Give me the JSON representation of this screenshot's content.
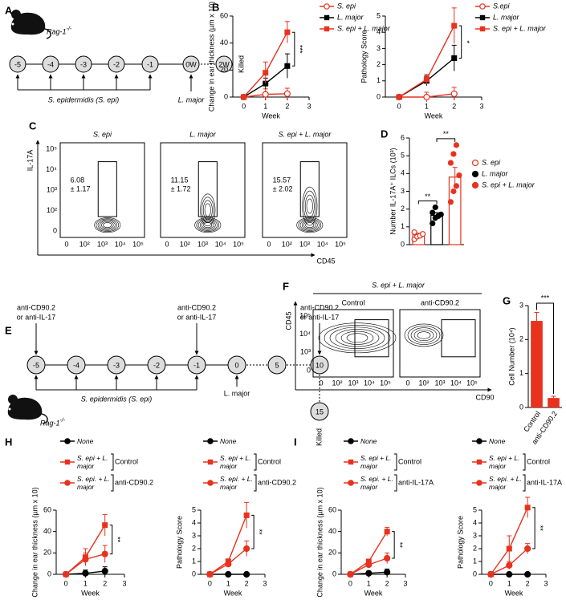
{
  "diagram_a": {
    "panel_label": "A",
    "strain": "Rag-1",
    "strain_sup": "-/-",
    "days": [
      "-5",
      "-4",
      "-3",
      "-2",
      "-1",
      "0W",
      "2W"
    ],
    "end_label": "Killed",
    "treatment": "S. epidermidis (S. epi)",
    "infection": "L. major"
  },
  "flow_c": {
    "panel_label": "C",
    "y_axis_label": "IL-17A",
    "x_axis_label": "CD45",
    "yticks": [
      "10⁵",
      "10⁴",
      "10³",
      "10²",
      "0"
    ],
    "xticks": [
      "0",
      "10²",
      "10³",
      "10⁴",
      "10⁵"
    ],
    "plots": [
      {
        "title": "S. epi",
        "gate_label": [
          "6.08",
          "± 1.17"
        ]
      },
      {
        "title": "L. major",
        "gate_label": [
          "11.15",
          "± 1.72"
        ]
      },
      {
        "title": "S. epi + L. major",
        "gate_label": [
          "15.57",
          "± 2.02"
        ]
      }
    ]
  },
  "diagram_e": {
    "panel_label": "E",
    "strain": "Rag-1",
    "strain_sup": "-/-",
    "days": [
      "-5",
      "-4",
      "-3",
      "-2",
      "-1",
      "0",
      "5",
      "10",
      "15"
    ],
    "doses": [
      [
        "anti-CD90.2",
        "or anti-IL-17"
      ],
      [
        "anti-CD90.2",
        "or anti-IL-17"
      ],
      [
        "anti-CD90.2",
        "or anti-IL-17"
      ]
    ],
    "treatment": "S. epidermidis (S. epi)",
    "infection": "L. major",
    "end_label": "Killed"
  },
  "flow_f": {
    "panel_label": "F",
    "header": "S. epi + L. major",
    "y_axis_label": "CD45",
    "x_axis_label": "CD90",
    "yticks": [
      "10⁵",
      "10⁴",
      "10³",
      "0"
    ],
    "xticks": [
      "0",
      "10²",
      "10³",
      "10⁴",
      "10⁵"
    ],
    "plots": [
      {
        "title": "Control"
      },
      {
        "title": "anti-CD90.2"
      }
    ]
  },
  "chart_data": [
    {
      "type": "line",
      "panel_label": "B",
      "ylabel": "Change in ear  thickness (µm x 10)",
      "xlabel": "Week",
      "x": [
        0,
        1,
        2
      ],
      "xlim": [
        -0.5,
        3
      ],
      "xticks": [
        0,
        1,
        2,
        3
      ],
      "ylim": [
        0,
        60
      ],
      "yticks": [
        0,
        20,
        40,
        60
      ],
      "significance": "***",
      "series": [
        {
          "name": "S. epi",
          "color": "#e8321e",
          "marker": "open-circle",
          "values": [
            0,
            2,
            2.5
          ],
          "errors": [
            0,
            4,
            4
          ]
        },
        {
          "name": "L. major",
          "color": "#000000",
          "marker": "square",
          "values": [
            0,
            10,
            23
          ],
          "errors": [
            0,
            4,
            9
          ]
        },
        {
          "name": "S. epi + L. major",
          "color": "#e8321e",
          "marker": "square",
          "values": [
            0,
            18,
            48
          ],
          "errors": [
            0,
            8,
            8
          ]
        }
      ]
    },
    {
      "type": "line",
      "ylabel": "Pathology Score",
      "xlabel": "Week",
      "x": [
        0,
        1,
        2
      ],
      "xlim": [
        -0.5,
        3
      ],
      "xticks": [
        0,
        1,
        2,
        3
      ],
      "ylim": [
        0,
        5
      ],
      "yticks": [
        0,
        1,
        2,
        3,
        4,
        5
      ],
      "significance": "*",
      "series": [
        {
          "name": "S.epi",
          "color": "#e8321e",
          "marker": "open-circle",
          "values": [
            0,
            0,
            0.2
          ],
          "errors": [
            0,
            0.3,
            0.4
          ]
        },
        {
          "name": "L. major",
          "color": "#000000",
          "marker": "square",
          "values": [
            0,
            1,
            2.4
          ],
          "errors": [
            0,
            0.3,
            0.8
          ]
        },
        {
          "name": "S. epi + L. major",
          "color": "#e8321e",
          "marker": "square",
          "values": [
            0,
            1.1,
            4.4
          ],
          "errors": [
            0,
            0.3,
            1.1
          ]
        }
      ]
    },
    {
      "type": "bar",
      "panel_label": "D",
      "ylabel": "Number IL-17A⁺ ILCs (10³)",
      "categories": [
        null,
        null,
        null
      ],
      "values": [
        0.55,
        1.65,
        3.8
      ],
      "errors": [
        0.1,
        0.15,
        0.55
      ],
      "points": [
        [
          0.3,
          0.45,
          0.5,
          0.6,
          0.7
        ],
        [
          1.2,
          1.5,
          1.6,
          1.7,
          1.8,
          2.1
        ],
        [
          2.4,
          3.0,
          3.3,
          3.9,
          4.6,
          5.1,
          5.6
        ]
      ],
      "colors": [
        "#e8321e",
        "#000000",
        "#e8321e"
      ],
      "markers": [
        "open-circle",
        "circle",
        "circle"
      ],
      "legend": [
        "S. epi",
        "L. major",
        "S. epi + L. major"
      ],
      "ylim": [
        0,
        6
      ],
      "yticks": [
        0,
        1,
        2,
        3,
        4,
        5,
        6
      ],
      "annotations": [
        "**",
        "**"
      ]
    },
    {
      "type": "bar",
      "panel_label": "G",
      "ylabel": "Cell Number (10⁴)",
      "categories": [
        "Control",
        "anti-CD90.2"
      ],
      "values": [
        2.55,
        0.28
      ],
      "errors": [
        0.25,
        0.05
      ],
      "color": "#e8321e",
      "ylim": [
        0,
        3
      ],
      "yticks": [
        0,
        1,
        2,
        3
      ],
      "annotations": [
        "***"
      ]
    },
    {
      "type": "line",
      "panel_label": "H",
      "ylabel": "Change in ear  thickness (µm x 10)",
      "xlabel": "Week",
      "x": [
        0,
        1,
        2
      ],
      "xlim": [
        -0.5,
        3
      ],
      "xticks": [
        0,
        1,
        2,
        3
      ],
      "ylim": [
        0,
        60
      ],
      "yticks": [
        0,
        20,
        40,
        60
      ],
      "significance": "**",
      "series": [
        {
          "name": "None",
          "color": "#000000",
          "marker": "circle",
          "values": [
            0,
            1,
            3
          ],
          "errors": [
            0,
            3,
            4
          ]
        },
        {
          "name": "S. epi + L. major",
          "tag": "Control",
          "color": "#e8321e",
          "marker": "square",
          "values": [
            0,
            16,
            46
          ],
          "errors": [
            0,
            8,
            10
          ]
        },
        {
          "name": "S. epi. + L. major",
          "tag": "anti-CD90.2",
          "color": "#e8321e",
          "marker": "circle",
          "values": [
            0,
            14,
            19
          ],
          "errors": [
            0,
            6,
            8
          ]
        }
      ]
    },
    {
      "type": "line",
      "ylabel": "Pathology Score",
      "xlabel": "Week",
      "x": [
        0,
        1,
        2
      ],
      "xlim": [
        -0.5,
        3
      ],
      "xticks": [
        0,
        1,
        2,
        3
      ],
      "ylim": [
        0,
        5
      ],
      "yticks": [
        0,
        1,
        2,
        3,
        4,
        5
      ],
      "significance": "**",
      "series": [
        {
          "name": "None",
          "color": "#000000",
          "marker": "circle",
          "values": [
            0,
            0,
            0
          ],
          "errors": [
            0,
            0,
            0
          ]
        },
        {
          "name": "S. epi + L. major",
          "tag": "Control",
          "color": "#e8321e",
          "marker": "square",
          "values": [
            0,
            1,
            4.6
          ],
          "errors": [
            0,
            0.2,
            1
          ]
        },
        {
          "name": "S. epi. + L. major",
          "tag": "anti-CD90.2",
          "color": "#e8321e",
          "marker": "circle",
          "values": [
            0,
            0.8,
            2
          ],
          "errors": [
            0,
            0.2,
            0.6
          ]
        }
      ]
    },
    {
      "type": "line",
      "panel_label": "I",
      "ylabel": "Change in ear  thickness (µm x 10)",
      "xlabel": "Week",
      "x": [
        0,
        1,
        2
      ],
      "xlim": [
        -0.5,
        3
      ],
      "xticks": [
        0,
        1,
        2,
        3
      ],
      "ylim": [
        0,
        60
      ],
      "yticks": [
        0,
        20,
        40,
        60
      ],
      "significance": "**",
      "series": [
        {
          "name": "None",
          "color": "#000000",
          "marker": "circle",
          "values": [
            0,
            1,
            2
          ],
          "errors": [
            0,
            2,
            3
          ]
        },
        {
          "name": "S. epi + L. major",
          "tag": "Control",
          "color": "#e8321e",
          "marker": "square",
          "values": [
            0,
            12,
            40
          ],
          "errors": [
            0,
            2,
            4
          ]
        },
        {
          "name": "S. epi. + L. major",
          "tag": "anti-IL-17A",
          "color": "#e8321e",
          "marker": "circle",
          "values": [
            0,
            9,
            15
          ],
          "errors": [
            0,
            2,
            5
          ]
        }
      ]
    },
    {
      "type": "line",
      "ylabel": "Pathology Score",
      "xlabel": "Week",
      "x": [
        0,
        1,
        2
      ],
      "xlim": [
        -0.5,
        3
      ],
      "xticks": [
        0,
        1,
        2,
        3
      ],
      "ylim": [
        0,
        5
      ],
      "yticks": [
        0,
        1,
        2,
        3,
        4,
        5
      ],
      "significance": "**",
      "series": [
        {
          "name": "None",
          "color": "#000000",
          "marker": "circle",
          "values": [
            0,
            0,
            0
          ],
          "errors": [
            0,
            0,
            0
          ]
        },
        {
          "name": "S. epi + L. major",
          "tag": "Control",
          "color": "#e8321e",
          "marker": "square",
          "values": [
            0,
            2,
            5.2
          ],
          "errors": [
            0,
            1,
            0.8
          ]
        },
        {
          "name": "S. epi. + L. major",
          "tag": "anti-IL-17A",
          "color": "#e8321e",
          "marker": "circle",
          "values": [
            0,
            0.7,
            2
          ],
          "errors": [
            0,
            0.3,
            0.4
          ]
        }
      ]
    }
  ]
}
